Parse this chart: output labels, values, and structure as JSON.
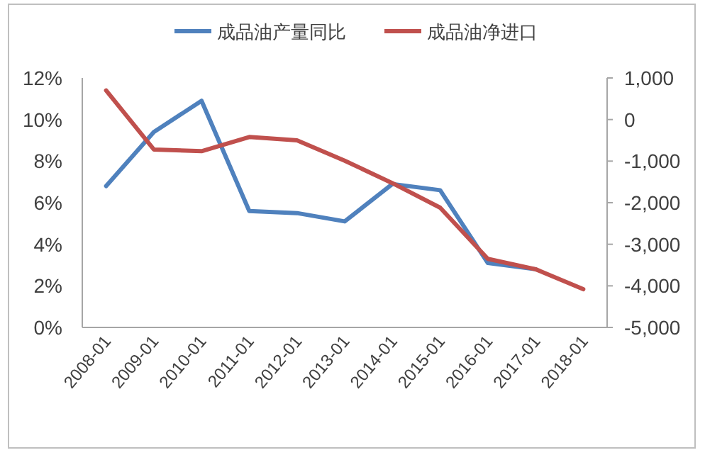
{
  "chart_data": {
    "type": "line",
    "categories": [
      "2008-01",
      "2009-01",
      "2010-01",
      "2011-01",
      "2012-01",
      "2013-01",
      "2014-01",
      "2015-01",
      "2016-01",
      "2017-01",
      "2018-01"
    ],
    "series": [
      {
        "name": "成品油产量同比",
        "color": "#4f81bd",
        "values": [
          6.8,
          9.4,
          10.9,
          5.6,
          5.5,
          5.1,
          6.9,
          6.6,
          3.1,
          2.8,
          null
        ]
      },
      {
        "name": "成品油净进口",
        "color": "#c0504d",
        "axis": "y2",
        "values": [
          700,
          -720,
          -760,
          -420,
          -500,
          -990,
          -1530,
          -2120,
          -3350,
          -3600,
          -4080
        ]
      }
    ],
    "ylim": [
      0,
      12
    ],
    "yticks": [
      {
        "value": 0,
        "label": "0%"
      },
      {
        "value": 2,
        "label": "2%"
      },
      {
        "value": 4,
        "label": "4%"
      },
      {
        "value": 6,
        "label": "6%"
      },
      {
        "value": 8,
        "label": "8%"
      },
      {
        "value": 10,
        "label": "10%"
      },
      {
        "value": 12,
        "label": "12%"
      }
    ],
    "y2lim": [
      -5000,
      1000
    ],
    "y2ticks": [
      {
        "value": -5000,
        "label": "-5,000"
      },
      {
        "value": -4000,
        "label": "-4,000"
      },
      {
        "value": -3000,
        "label": "-3,000"
      },
      {
        "value": -2000,
        "label": "-2,000"
      },
      {
        "value": -1000,
        "label": "-1,000"
      },
      {
        "value": 0,
        "label": "0"
      },
      {
        "value": 1000,
        "label": "1,000"
      }
    ],
    "legend": "top",
    "grid": false,
    "marker": "none",
    "line_style": "solid"
  }
}
